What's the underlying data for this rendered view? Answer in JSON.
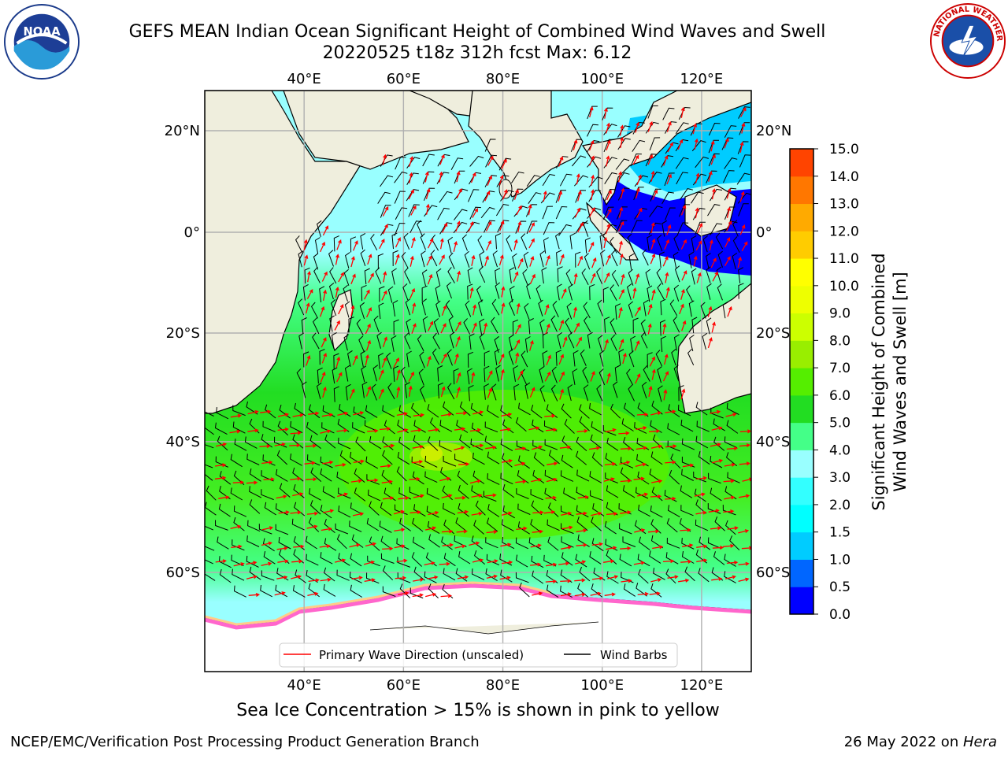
{
  "header": {
    "title_line1": "GEFS MEAN Indian Ocean Significant Height of Combined Wind Waves and Swell",
    "title_line2": "20220525 t18z 312h fcst   Max: 6.12"
  },
  "logos": {
    "left": {
      "icon": "noaa-logo",
      "text": "NOAA"
    },
    "right": {
      "icon": "nws-logo",
      "text": "NATIONAL WEATHER SERVICE"
    }
  },
  "map": {
    "lon_ticks": [
      40,
      60,
      80,
      100,
      120
    ],
    "lat_ticks": [
      20,
      0,
      -20,
      -40,
      -60
    ],
    "lon_labels": [
      "40°E",
      "60°E",
      "80°E",
      "100°E",
      "120°E"
    ],
    "lat_labels_left": [
      "20°N",
      "0°",
      "20°S",
      "40°S",
      "60°S"
    ],
    "lat_labels_right": [
      "20°N",
      "0°",
      "20°S",
      "40°S",
      "60°S"
    ],
    "lon_range": [
      20,
      130
    ],
    "projection": "mercator",
    "colors": {
      "land": "#efeedd",
      "ice_shelf": "#ffffff",
      "sea_ice": "#ff66cc",
      "grid": "#b0b0b0",
      "wave_arrow": "#ff0000",
      "wind_barb": "#000000"
    }
  },
  "legend": {
    "wave_label": "Primary Wave Direction (unscaled)",
    "wind_label": "Wind Barbs"
  },
  "colorbar": {
    "label_line1": "Significant Height of Combined",
    "label_line2": "Wind Waves and Swell [m]",
    "ticks": [
      "0.0",
      "0.5",
      "1.0",
      "1.5",
      "2.0",
      "3.0",
      "4.0",
      "5.0",
      "6.0",
      "7.0",
      "8.0",
      "9.0",
      "10.0",
      "11.0",
      "12.0",
      "13.0",
      "14.0",
      "15.0"
    ],
    "colors": [
      "#0000ff",
      "#0066ff",
      "#00ccff",
      "#00ffff",
      "#33ffff",
      "#99ffff",
      "#44ff88",
      "#22dd22",
      "#55ee00",
      "#99ee00",
      "#ccff00",
      "#eeff00",
      "#ffff00",
      "#ffcc00",
      "#ffaa00",
      "#ff7700",
      "#ff4400",
      "#ff0000"
    ]
  },
  "ice_note": "Sea Ice Concentration > 15% is shown in pink to yellow",
  "footer": {
    "left": "NCEP/EMC/Verification Post Processing Product Generation Branch",
    "right_prefix": "26 May 2022 on ",
    "right_host": "Hera"
  }
}
